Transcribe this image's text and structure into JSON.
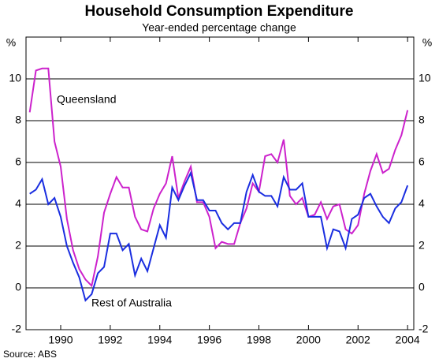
{
  "chart_data": {
    "type": "line",
    "title": "Household Consumption Expenditure",
    "subtitle": "Year-ended percentage change",
    "ylabel": "%",
    "y2label": "%",
    "source": "Source: ABS",
    "annotations": [
      {
        "text": "Queensland",
        "series": 0
      },
      {
        "text": "Rest of Australia",
        "series": 1
      }
    ],
    "x": [
      1988.75,
      1989,
      1989.25,
      1989.5,
      1989.75,
      1990,
      1990.25,
      1990.5,
      1990.75,
      1991,
      1991.25,
      1991.5,
      1991.75,
      1992,
      1992.25,
      1992.5,
      1992.75,
      1993,
      1993.25,
      1993.5,
      1993.75,
      1994,
      1994.25,
      1994.5,
      1994.75,
      1995,
      1995.25,
      1995.5,
      1995.75,
      1996,
      1996.25,
      1996.5,
      1996.75,
      1997,
      1997.25,
      1997.5,
      1997.75,
      1998,
      1998.25,
      1998.5,
      1998.75,
      1999,
      1999.25,
      1999.5,
      1999.75,
      2000,
      2000.25,
      2000.5,
      2000.75,
      2001,
      2001.25,
      2001.5,
      2001.75,
      2002,
      2002.25,
      2002.5,
      2002.75,
      2003,
      2003.25,
      2003.5,
      2003.75,
      2004
    ],
    "series": [
      {
        "name": "Queensland",
        "color": "#cc22cc",
        "values": [
          8.4,
          10.4,
          10.5,
          10.5,
          7.0,
          5.8,
          3.3,
          1.8,
          0.9,
          0.4,
          0.1,
          1.5,
          3.6,
          4.5,
          5.3,
          4.8,
          4.8,
          3.4,
          2.8,
          2.7,
          3.8,
          4.5,
          5.0,
          6.3,
          4.3,
          5.1,
          5.8,
          4.1,
          4.1,
          3.4,
          1.9,
          2.2,
          2.1,
          2.1,
          3.1,
          3.8,
          5.0,
          4.6,
          6.3,
          6.4,
          6.0,
          7.1,
          4.4,
          4.0,
          4.3,
          3.4,
          3.5,
          4.1,
          3.3,
          3.9,
          4.0,
          2.8,
          2.6,
          3.0,
          4.5,
          5.6,
          6.4,
          5.5,
          5.7,
          6.6,
          7.3,
          8.5
        ]
      },
      {
        "name": "Rest of Australia",
        "color": "#1a2ee0",
        "values": [
          4.5,
          4.7,
          5.2,
          4.0,
          4.3,
          3.4,
          2.0,
          1.2,
          0.5,
          -0.6,
          -0.3,
          0.7,
          1.0,
          2.6,
          2.6,
          1.8,
          2.1,
          0.6,
          1.4,
          0.8,
          1.9,
          3.0,
          2.4,
          4.8,
          4.2,
          4.9,
          5.5,
          4.2,
          4.2,
          3.7,
          3.7,
          3.1,
          2.8,
          3.1,
          3.1,
          4.6,
          5.4,
          4.6,
          4.4,
          4.4,
          3.9,
          5.3,
          4.7,
          4.7,
          5.0,
          3.4,
          3.4,
          3.4,
          1.9,
          2.8,
          2.7,
          1.9,
          3.3,
          3.5,
          4.3,
          4.5,
          3.9,
          3.4,
          3.1,
          3.8,
          4.1,
          4.9
        ]
      }
    ],
    "xlim": [
      1988.6,
      2004.25
    ],
    "xticks": [
      1990,
      1992,
      1994,
      1996,
      1998,
      2000,
      2002,
      2004
    ],
    "ylim": [
      -2,
      12
    ],
    "yticks": [
      -2,
      0,
      2,
      4,
      6,
      8,
      10
    ],
    "y2lim": [
      -2,
      12
    ],
    "y2ticks": [
      -2,
      0,
      2,
      4,
      6,
      8,
      10
    ],
    "grid": true
  }
}
